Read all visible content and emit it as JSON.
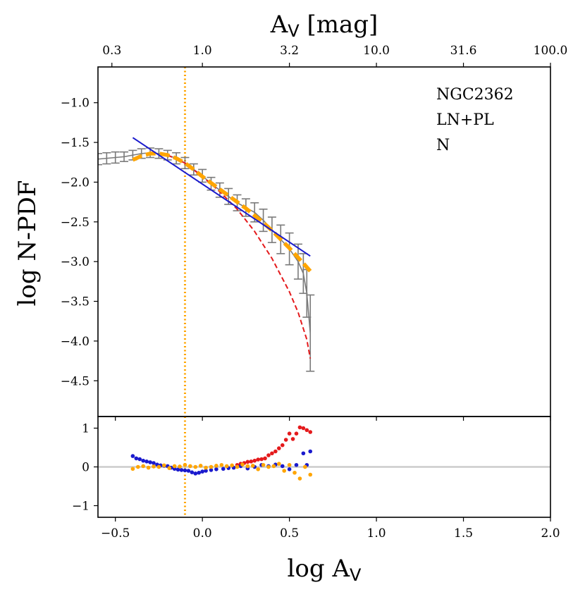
{
  "chart_data": [
    {
      "panel": "main",
      "type": "line",
      "xlabel": "log A_V",
      "ylabel": "log N-PDF",
      "top_axis_label": "A_V [mag]",
      "xlim": [
        -0.6,
        2.0
      ],
      "ylim": [
        -4.95,
        -0.55
      ],
      "xticks": [
        -0.5,
        0.0,
        0.5,
        1.0,
        1.5,
        2.0
      ],
      "xtick_labels": [
        "−0.5",
        "0.0",
        "0.5",
        "1.0",
        "1.5",
        "2.0"
      ],
      "yticks": [
        -1.0,
        -1.5,
        -2.0,
        -2.5,
        -3.0,
        -3.5,
        -4.0,
        -4.5
      ],
      "ytick_labels": [
        "−1.0",
        "−1.5",
        "−2.0",
        "−2.5",
        "−3.0",
        "−3.5",
        "−4.0",
        "−4.5"
      ],
      "top_ticks": [
        -0.52,
        0.0,
        0.5,
        1.0,
        1.5,
        2.0
      ],
      "top_tick_labels": [
        "0.3",
        "1.0",
        "3.2",
        "10.0",
        "31.6",
        "100.0"
      ],
      "annotations": [
        "NGC2362",
        "LN+PL",
        "N"
      ],
      "threshold_x": -0.1,
      "colors": {
        "data": "#7a7a7a",
        "ln_pl": "#ffa500",
        "ln": "#e41a1c",
        "pl": "#1a1acd",
        "threshold": "#ffa500"
      },
      "series": [
        {
          "name": "data",
          "x": [
            -0.6,
            -0.55,
            -0.5,
            -0.45,
            -0.4,
            -0.35,
            -0.3,
            -0.25,
            -0.2,
            -0.15,
            -0.1,
            -0.05,
            0.0,
            0.05,
            0.1,
            0.15,
            0.2,
            0.25,
            0.3,
            0.35,
            0.4,
            0.45,
            0.5,
            0.55,
            0.58,
            0.6,
            0.62
          ],
          "y": [
            -1.71,
            -1.7,
            -1.69,
            -1.68,
            -1.66,
            -1.64,
            -1.63,
            -1.64,
            -1.66,
            -1.7,
            -1.76,
            -1.84,
            -1.92,
            -2.02,
            -2.1,
            -2.18,
            -2.26,
            -2.32,
            -2.38,
            -2.48,
            -2.6,
            -2.72,
            -2.84,
            -3.0,
            -3.15,
            -3.4,
            -3.9
          ],
          "yerr": [
            0.07,
            0.07,
            0.07,
            0.06,
            0.06,
            0.06,
            0.06,
            0.06,
            0.06,
            0.07,
            0.07,
            0.07,
            0.08,
            0.08,
            0.09,
            0.1,
            0.1,
            0.11,
            0.12,
            0.14,
            0.16,
            0.18,
            0.2,
            0.22,
            0.25,
            0.3,
            0.48
          ]
        },
        {
          "name": "LN+PL fit",
          "x": [
            -0.4,
            -0.35,
            -0.3,
            -0.25,
            -0.2,
            -0.15,
            -0.1,
            -0.05,
            0.0,
            0.05,
            0.1,
            0.15,
            0.2,
            0.25,
            0.3,
            0.35,
            0.4,
            0.45,
            0.5,
            0.55,
            0.6,
            0.62
          ],
          "y": [
            -1.72,
            -1.67,
            -1.64,
            -1.64,
            -1.66,
            -1.7,
            -1.76,
            -1.84,
            -1.93,
            -2.01,
            -2.09,
            -2.17,
            -2.25,
            -2.33,
            -2.42,
            -2.51,
            -2.61,
            -2.72,
            -2.83,
            -2.95,
            -3.07,
            -3.12
          ]
        },
        {
          "name": "LN component",
          "x": [
            -0.2,
            -0.1,
            0.0,
            0.1,
            0.2,
            0.3,
            0.4,
            0.5,
            0.55,
            0.6,
            0.62
          ],
          "y": [
            -1.66,
            -1.76,
            -1.93,
            -2.12,
            -2.34,
            -2.62,
            -2.96,
            -3.38,
            -3.64,
            -3.98,
            -4.22
          ]
        },
        {
          "name": "PL component",
          "x": [
            -0.4,
            0.62
          ],
          "y": [
            -1.44,
            -2.93
          ]
        }
      ]
    },
    {
      "panel": "residuals",
      "type": "scatter",
      "xlim": [
        -0.6,
        2.0
      ],
      "ylim": [
        -1.3,
        1.3
      ],
      "yticks": [
        1,
        0,
        -1
      ],
      "ytick_labels": [
        "1",
        "0",
        "−1"
      ],
      "zero_line": 0,
      "series": [
        {
          "name": "LN residual",
          "color": "#e41a1c",
          "x": [
            0.2,
            0.22,
            0.24,
            0.26,
            0.28,
            0.3,
            0.32,
            0.34,
            0.36,
            0.38,
            0.4,
            0.42,
            0.44,
            0.46,
            0.48,
            0.5,
            0.52,
            0.54,
            0.56,
            0.58,
            0.6,
            0.62
          ],
          "y": [
            0.05,
            0.08,
            0.1,
            0.13,
            0.14,
            0.16,
            0.19,
            0.2,
            0.22,
            0.3,
            0.35,
            0.4,
            0.48,
            0.56,
            0.7,
            0.86,
            0.72,
            0.86,
            1.02,
            1.0,
            0.95,
            0.9
          ]
        },
        {
          "name": "PL residual",
          "color": "#1a1acd",
          "x": [
            -0.4,
            -0.38,
            -0.36,
            -0.34,
            -0.32,
            -0.3,
            -0.28,
            -0.26,
            -0.24,
            -0.22,
            -0.2,
            -0.18,
            -0.16,
            -0.14,
            -0.12,
            -0.1,
            -0.08,
            -0.06,
            -0.04,
            -0.02,
            0.0,
            0.02,
            0.05,
            0.08,
            0.12,
            0.15,
            0.18,
            0.22,
            0.26,
            0.3,
            0.34,
            0.38,
            0.42,
            0.46,
            0.5,
            0.54,
            0.58,
            0.6,
            0.62
          ],
          "y": [
            0.28,
            0.22,
            0.2,
            0.16,
            0.14,
            0.12,
            0.1,
            0.06,
            0.04,
            0.03,
            0.02,
            -0.02,
            -0.05,
            -0.07,
            -0.08,
            -0.09,
            -0.1,
            -0.14,
            -0.17,
            -0.15,
            -0.12,
            -0.1,
            -0.08,
            -0.06,
            -0.05,
            -0.03,
            -0.02,
            0.02,
            -0.04,
            0.0,
            0.05,
            0.02,
            0.06,
            0.02,
            -0.06,
            0.05,
            0.35,
            0.05,
            0.4
          ]
        },
        {
          "name": "LN+PL residual",
          "color": "#ffa500",
          "x": [
            -0.4,
            -0.37,
            -0.34,
            -0.31,
            -0.28,
            -0.25,
            -0.22,
            -0.19,
            -0.16,
            -0.13,
            -0.1,
            -0.07,
            -0.04,
            -0.01,
            0.02,
            0.05,
            0.08,
            0.11,
            0.14,
            0.17,
            0.2,
            0.23,
            0.26,
            0.29,
            0.32,
            0.35,
            0.38,
            0.41,
            0.44,
            0.47,
            0.5,
            0.53,
            0.56,
            0.59,
            0.62
          ],
          "y": [
            -0.05,
            0.0,
            0.02,
            -0.02,
            0.01,
            0.0,
            0.04,
            -0.03,
            0.02,
            0.01,
            0.05,
            0.02,
            0.0,
            0.03,
            -0.02,
            0.0,
            0.03,
            0.05,
            0.02,
            0.04,
            0.0,
            0.06,
            0.02,
            0.03,
            -0.06,
            0.05,
            0.0,
            0.02,
            0.08,
            -0.1,
            0.05,
            -0.15,
            -0.3,
            0.0,
            -0.2
          ]
        }
      ]
    }
  ]
}
